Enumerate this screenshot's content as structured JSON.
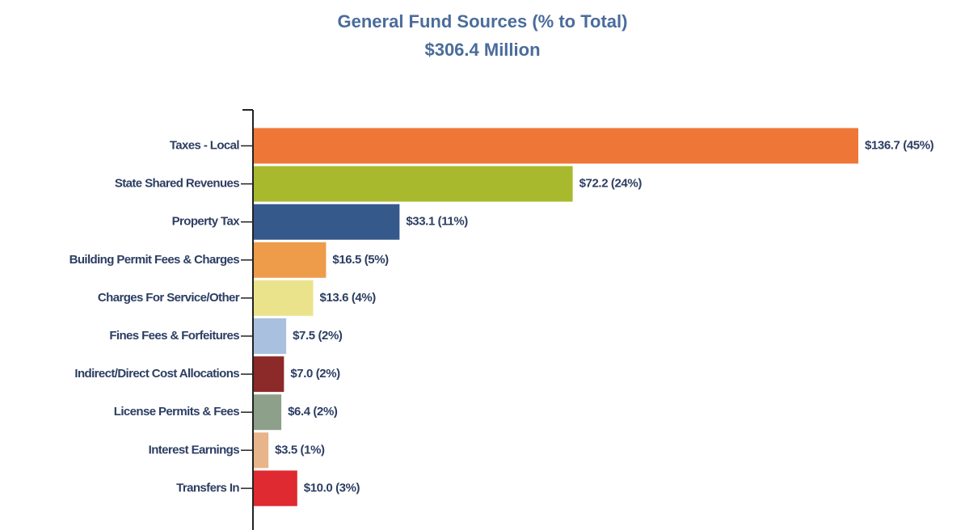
{
  "chart_data": {
    "type": "hbar",
    "title": "General Fund Sources (% to Total)",
    "subtitle": "$306.4 Million",
    "categories": [
      "Taxes - Local",
      "State Shared Revenues",
      "Property Tax",
      "Building Permit Fees & Charges",
      "Charges For Service/Other",
      "Fines Fees & Forfeitures",
      "Indirect/Direct Cost Allocations",
      "License Permits & Fees",
      "Interest Earnings",
      "Transfers In"
    ],
    "values": [
      136.7,
      72.2,
      33.1,
      16.5,
      13.6,
      7.5,
      7.0,
      6.4,
      3.5,
      10.0
    ],
    "value_labels": [
      "$136.7 (45%)",
      "$72.2 (24%)",
      "$33.1 (11%)",
      "$16.5 (5%)",
      "$13.6 (4%)",
      "$7.5 (2%)",
      "$7.0 (2%)",
      "$6.4 (2%)",
      "$3.5 (1%)",
      "$10.0 (3%)"
    ],
    "colors": [
      "#ee7738",
      "#a8b92d",
      "#36598c",
      "#ee9b4a",
      "#ebe38c",
      "#a9c1de",
      "#8c2a2a",
      "#8da08a",
      "#e8b48a",
      "#de2a30"
    ]
  }
}
